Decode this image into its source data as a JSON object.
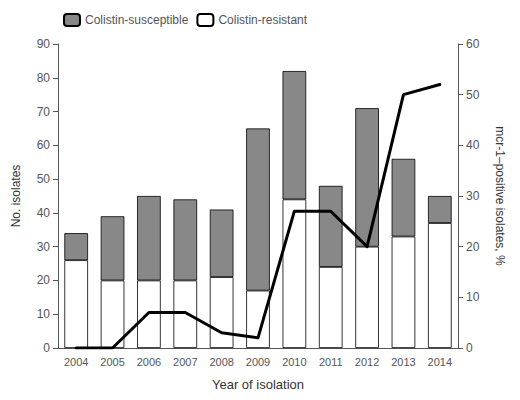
{
  "chart_data": {
    "type": "bar",
    "xlabel": "Year of isolation",
    "ylabel": "No. isolates",
    "y2label": "mcr-1–positive isolates, %",
    "categories": [
      2004,
      2005,
      2006,
      2007,
      2008,
      2009,
      2010,
      2011,
      2012,
      2013,
      2014
    ],
    "series": [
      {
        "name": "Colistin-resistant",
        "type": "bar",
        "color": "#ffffff",
        "values": [
          26,
          20,
          20,
          20,
          21,
          17,
          44,
          24,
          30,
          33,
          37
        ]
      },
      {
        "name": "Colistin-susceptible",
        "type": "bar",
        "color": "#888888",
        "values": [
          8,
          19,
          25,
          24,
          20,
          48,
          38,
          24,
          41,
          23,
          8
        ]
      },
      {
        "type": "line",
        "axis": "y2",
        "color": "#000000",
        "values": [
          0,
          0,
          7,
          7,
          3,
          2,
          27,
          27,
          20,
          50,
          52
        ]
      }
    ],
    "stacked": true,
    "ylim": [
      0,
      90
    ],
    "yticks": [
      0,
      10,
      20,
      30,
      40,
      50,
      60,
      70,
      80,
      90
    ],
    "y2lim": [
      0,
      60
    ],
    "y2ticks": [
      0,
      10,
      20,
      30,
      40,
      50,
      60
    ],
    "grid": false,
    "legend": "upper left"
  }
}
